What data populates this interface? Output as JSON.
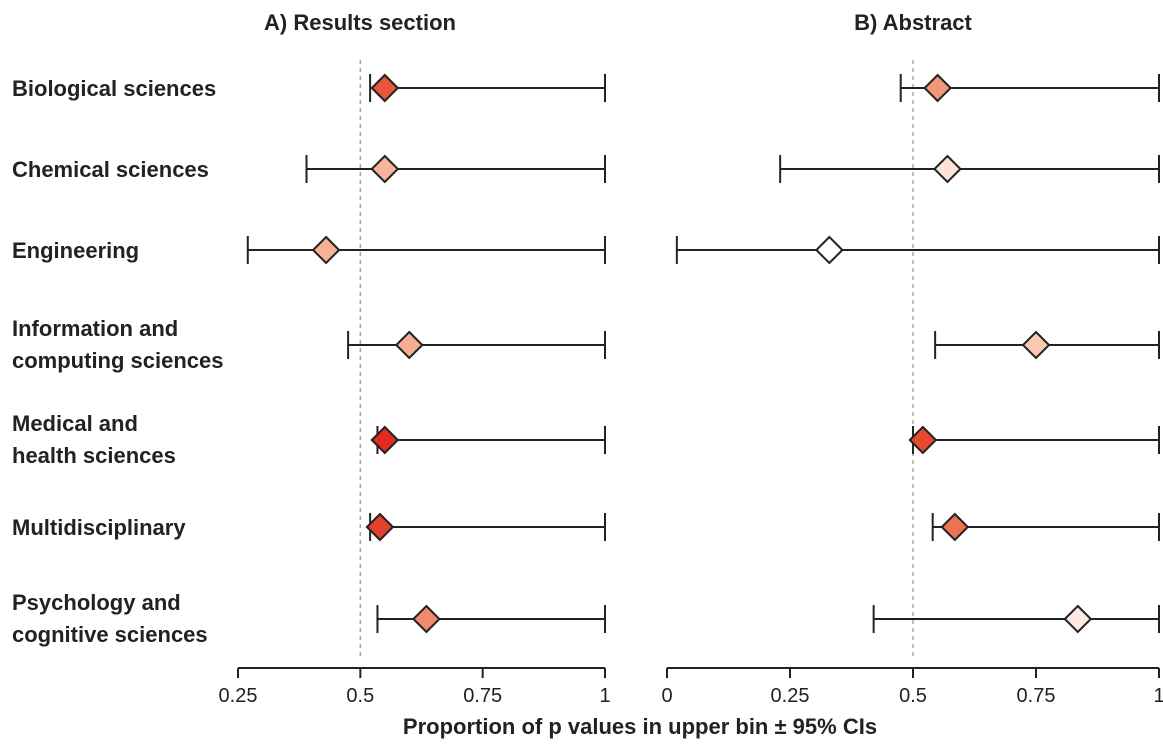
{
  "chart_data": {
    "type": "forest",
    "xlabel": "Proportion of p values in upper bin ± 95% CIs",
    "reference_line": 0.5,
    "categories": [
      [
        "Biological sciences"
      ],
      [
        "Chemical sciences"
      ],
      [
        "Engineering"
      ],
      [
        "Information and",
        "computing sciences"
      ],
      [
        "Medical and",
        "health sciences"
      ],
      [
        "Multidisciplinary"
      ],
      [
        "Psychology and",
        "cognitive sciences"
      ]
    ],
    "panels": [
      {
        "title": "A) Results section",
        "xlim": [
          0.25,
          1
        ],
        "ticks": [
          0.25,
          0.5,
          0.75,
          1
        ],
        "tick_labels": [
          "0.25",
          "0.5",
          "0.75",
          "1"
        ],
        "points": [
          {
            "value": 0.55,
            "lower": 0.52,
            "upper": 1.0,
            "color": "#e8553a"
          },
          {
            "value": 0.55,
            "lower": 0.39,
            "upper": 1.0,
            "color": "#f8b59a"
          },
          {
            "value": 0.43,
            "lower": 0.27,
            "upper": 1.0,
            "color": "#f7b296"
          },
          {
            "value": 0.6,
            "lower": 0.475,
            "upper": 1.0,
            "color": "#f6ad92"
          },
          {
            "value": 0.55,
            "lower": 0.535,
            "upper": 1.0,
            "color": "#e32a1e"
          },
          {
            "value": 0.54,
            "lower": 0.52,
            "upper": 1.0,
            "color": "#e33f2c"
          },
          {
            "value": 0.635,
            "lower": 0.535,
            "upper": 1.0,
            "color": "#f08a6e"
          }
        ]
      },
      {
        "title": "B) Abstract",
        "xlim": [
          0,
          1
        ],
        "ticks": [
          0,
          0.25,
          0.5,
          0.75,
          1
        ],
        "tick_labels": [
          "0",
          "0.25",
          "0.5",
          "0.75",
          "1"
        ],
        "points": [
          {
            "value": 0.55,
            "lower": 0.475,
            "upper": 1.0,
            "color": "#f39778"
          },
          {
            "value": 0.57,
            "lower": 0.23,
            "upper": 1.0,
            "color": "#fde3d8"
          },
          {
            "value": 0.33,
            "lower": 0.02,
            "upper": 1.0,
            "color": "#ffffff"
          },
          {
            "value": 0.75,
            "lower": 0.545,
            "upper": 1.0,
            "color": "#fbc9b3"
          },
          {
            "value": 0.52,
            "lower": 0.5,
            "upper": 1.0,
            "color": "#e8492f"
          },
          {
            "value": 0.585,
            "lower": 0.54,
            "upper": 1.0,
            "color": "#ee7253"
          },
          {
            "value": 0.835,
            "lower": 0.42,
            "upper": 1.0,
            "color": "#fdebe3"
          }
        ]
      }
    ]
  }
}
